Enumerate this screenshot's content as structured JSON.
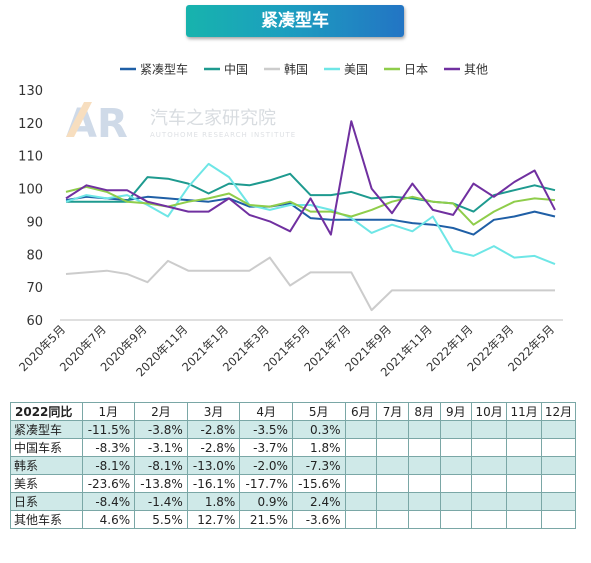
{
  "title": "紧凑型车",
  "watermark": {
    "logo_letters": "AR",
    "cn": "汽车之家研究院",
    "en": "AUTOHOME RESEARCH INSTITUTE"
  },
  "chart_data": {
    "type": "line",
    "title": "紧凑型车",
    "ylim": [
      60,
      130
    ],
    "yticks": [
      60,
      70,
      80,
      90,
      100,
      110,
      120,
      130
    ],
    "grid": false,
    "legend_position": "top",
    "x": [
      "2020年5月",
      "2020年6月",
      "2020年7月",
      "2020年8月",
      "2020年9月",
      "2020年10月",
      "2020年11月",
      "2020年12月",
      "2021年1月",
      "2021年2月",
      "2021年3月",
      "2021年4月",
      "2021年5月",
      "2021年6月",
      "2021年7月",
      "2021年8月",
      "2021年9月",
      "2021年10月",
      "2021年11月",
      "2021年12月",
      "2022年1月",
      "2022年2月",
      "2022年3月",
      "2022年4月",
      "2022年5月"
    ],
    "xtick_labels": [
      "2020年5月",
      "2020年7月",
      "2020年9月",
      "2020年11月",
      "2021年1月",
      "2021年3月",
      "2021年5月",
      "2021年7月",
      "2021年9月",
      "2021年11月",
      "2022年1月",
      "2022年3月",
      "2022年5月"
    ],
    "series": [
      {
        "name": "紧凑型车",
        "color": "#1f5fa6",
        "values": [
          96.5,
          97.5,
          97,
          96.5,
          97.5,
          97,
          96.5,
          96,
          97,
          94.5,
          94.5,
          95.5,
          91,
          90.5,
          90.5,
          90.5,
          90.5,
          89.5,
          89,
          88,
          86,
          90.5,
          91.5,
          93,
          91.5
        ]
      },
      {
        "name": "中国",
        "color": "#1e9a8f",
        "values": [
          96,
          96,
          96,
          96,
          103.5,
          103,
          101.5,
          98.5,
          101.5,
          101,
          102.5,
          104.5,
          98,
          98,
          99,
          97,
          97.5,
          97,
          96,
          95.5,
          93,
          98,
          99.5,
          101,
          99.5
        ]
      },
      {
        "name": "韩国",
        "color": "#cccccc",
        "values": [
          74,
          74.5,
          75,
          74,
          71.5,
          78,
          75,
          75,
          75,
          75,
          79,
          70.5,
          74.5,
          74.5,
          74.5,
          63,
          69,
          69,
          69,
          69,
          69,
          69,
          69,
          69,
          69
        ]
      },
      {
        "name": "美国",
        "color": "#6ee6e6",
        "values": [
          96,
          98,
          97,
          98,
          95,
          91.5,
          100.5,
          107.5,
          103.5,
          95,
          93.5,
          95,
          95,
          93.5,
          91,
          86.5,
          89,
          87,
          91.5,
          81,
          79.5,
          82.5,
          79,
          79.5,
          77
        ]
      },
      {
        "name": "日本",
        "color": "#8fcd4b",
        "values": [
          99,
          100.5,
          99,
          96,
          95.5,
          94.5,
          96,
          97,
          98.5,
          95,
          94.5,
          96,
          93,
          93,
          91.5,
          93.5,
          96,
          97.5,
          96,
          95.5,
          89,
          93,
          96,
          97,
          96.5
        ]
      },
      {
        "name": "其他",
        "color": "#7030a0",
        "values": [
          97,
          101,
          99.5,
          99.5,
          96,
          94.5,
          93,
          93,
          97,
          92,
          90,
          87,
          97,
          86,
          120.5,
          100,
          92.5,
          101.5,
          93.5,
          92,
          101.5,
          97.5,
          102,
          105.5,
          93.5
        ]
      }
    ]
  },
  "table": {
    "header": [
      "2022同比",
      "1月",
      "2月",
      "3月",
      "4月",
      "5月",
      "6月",
      "7月",
      "8月",
      "9月",
      "10月",
      "11月",
      "12月"
    ],
    "rows": [
      {
        "label": "紧凑型车",
        "values": [
          "-11.5%",
          "-3.8%",
          "-2.8%",
          "-3.5%",
          "0.3%",
          "",
          "",
          "",
          "",
          "",
          "",
          ""
        ]
      },
      {
        "label": "中国车系",
        "values": [
          "-8.3%",
          "-3.1%",
          "-2.8%",
          "-3.7%",
          "1.8%",
          "",
          "",
          "",
          "",
          "",
          "",
          ""
        ]
      },
      {
        "label": "韩系",
        "values": [
          "-8.1%",
          "-8.1%",
          "-13.0%",
          "-2.0%",
          "-7.3%",
          "",
          "",
          "",
          "",
          "",
          "",
          ""
        ]
      },
      {
        "label": "美系",
        "values": [
          "-23.6%",
          "-13.8%",
          "-16.1%",
          "-17.7%",
          "-15.6%",
          "",
          "",
          "",
          "",
          "",
          "",
          ""
        ]
      },
      {
        "label": "日系",
        "values": [
          "-8.4%",
          "-1.4%",
          "1.8%",
          "0.9%",
          "2.4%",
          "",
          "",
          "",
          "",
          "",
          "",
          ""
        ]
      },
      {
        "label": "其他车系",
        "values": [
          "4.6%",
          "5.5%",
          "12.7%",
          "21.5%",
          "-3.6%",
          "",
          "",
          "",
          "",
          "",
          "",
          ""
        ]
      }
    ]
  }
}
